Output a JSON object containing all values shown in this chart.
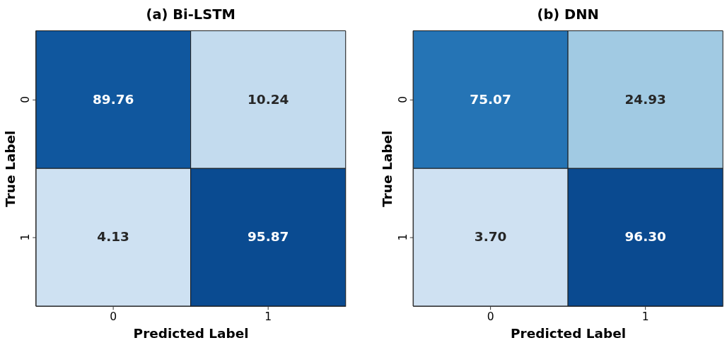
{
  "chart_data": [
    {
      "type": "heatmap",
      "title": "(a) Bi-LSTM",
      "xlabel": "Predicted Label",
      "ylabel": "True Label",
      "categories": [
        "0",
        "1"
      ],
      "y_categories": [
        "0",
        "1"
      ],
      "cells": [
        [
          89.76,
          10.24
        ],
        [
          4.13,
          95.87
        ]
      ],
      "cell_labels": [
        [
          "89.76",
          "10.24"
        ],
        [
          "4.13",
          "95.87"
        ]
      ]
    },
    {
      "type": "heatmap",
      "title": "(b) DNN",
      "xlabel": "Predicted Label",
      "ylabel": "True Label",
      "categories": [
        "0",
        "1"
      ],
      "y_categories": [
        "0",
        "1"
      ],
      "cells": [
        [
          75.07,
          24.93
        ],
        [
          3.7,
          96.3
        ]
      ],
      "cell_labels": [
        [
          "75.07",
          "24.93"
        ],
        [
          "3.70",
          "96.30"
        ]
      ]
    }
  ]
}
